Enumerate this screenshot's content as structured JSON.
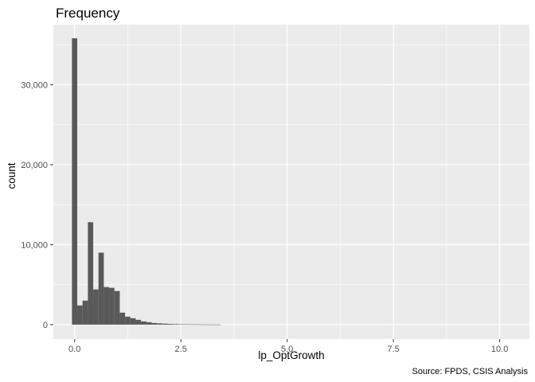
{
  "chart_data": {
    "type": "bar",
    "title": "Frequency",
    "xlabel": "lp_OptGrowth",
    "ylabel": "count",
    "caption": "Source: FPDS, CSIS Analysis",
    "xlim": [
      -0.5,
      10.7
    ],
    "ylim": [
      -1800,
      37500
    ],
    "x_ticks": [
      0.0,
      2.5,
      5.0,
      7.5,
      10.0
    ],
    "x_tick_labels": [
      "0.0",
      "2.5",
      "5.0",
      "7.5",
      "10.0"
    ],
    "y_ticks": [
      0,
      10000,
      20000,
      30000
    ],
    "y_tick_labels": [
      "0",
      "10,000",
      "20,000",
      "30,000"
    ],
    "bin_width": 0.125,
    "bin_starts": [
      -0.0625,
      0.0625,
      0.1875,
      0.3125,
      0.4375,
      0.5625,
      0.6875,
      0.8125,
      0.9375,
      1.0625,
      1.1875,
      1.3125,
      1.4375,
      1.5625,
      1.6875,
      1.8125,
      1.9375,
      2.0625,
      2.1875,
      2.3125,
      2.4375,
      2.5625,
      2.6875,
      2.8125,
      2.9375,
      3.0625,
      3.1875,
      3.3125
    ],
    "values": [
      35800,
      2400,
      3000,
      12800,
      4400,
      9000,
      4700,
      4600,
      4200,
      1500,
      1000,
      800,
      600,
      400,
      300,
      200,
      160,
      120,
      90,
      70,
      50,
      40,
      30,
      25,
      20,
      15,
      10,
      8
    ],
    "grid": true,
    "colors": {
      "panel": "#ebebeb",
      "grid_major": "#ffffff",
      "bar": "#595959",
      "text": "#4d4d4d",
      "title": "#000000"
    }
  }
}
